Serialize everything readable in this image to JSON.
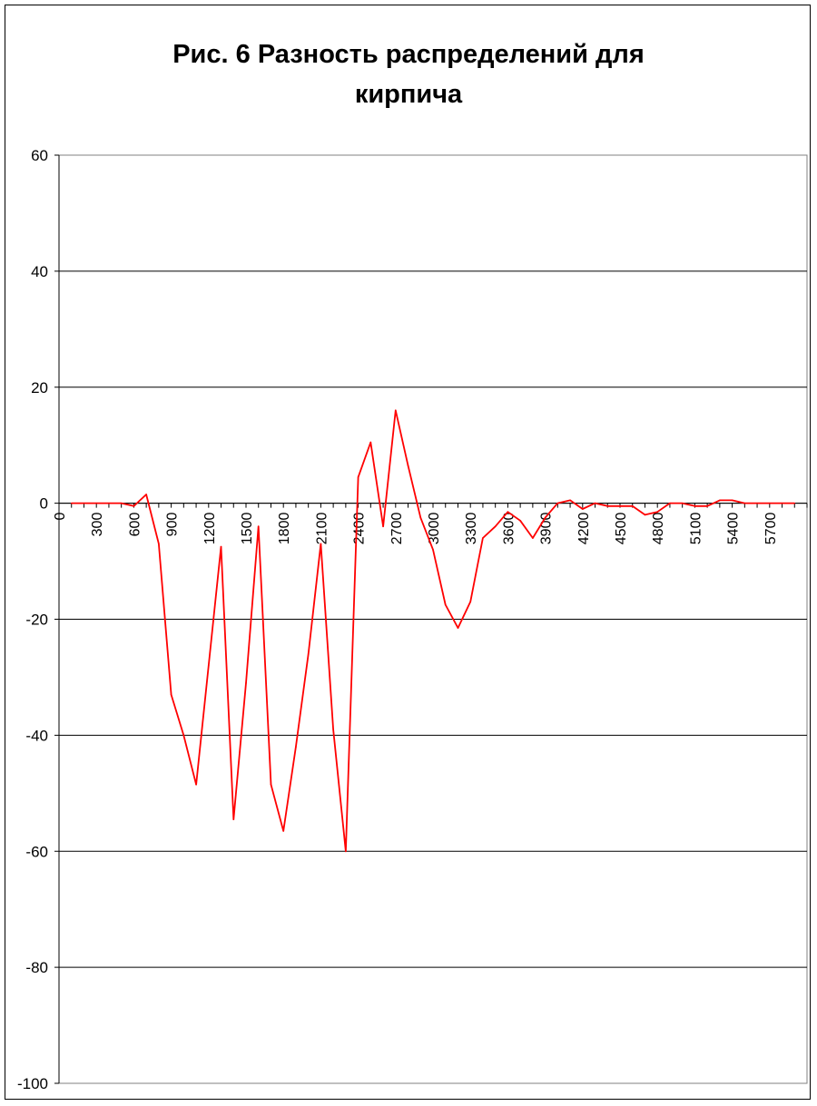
{
  "chart_data": {
    "type": "line",
    "title_lines": [
      "Рис. 6 Разность распределений для",
      "кирпича"
    ],
    "xlabel": "",
    "ylabel": "",
    "ylim": [
      -100,
      60
    ],
    "y_ticks": [
      60,
      40,
      20,
      0,
      -20,
      -40,
      -60,
      -80,
      -100
    ],
    "x_tick_labels": [
      "0",
      "300",
      "600",
      "900",
      "1200",
      "1500",
      "1800",
      "2100",
      "2400",
      "2700",
      "3000",
      "3300",
      "3600",
      "3900",
      "4200",
      "4500",
      "4800",
      "5100",
      "5400",
      "5700"
    ],
    "grid": "horizontal",
    "series": [
      {
        "color": "#ff0000",
        "x": [
          100,
          200,
          300,
          400,
          500,
          600,
          700,
          800,
          900,
          1000,
          1100,
          1200,
          1300,
          1400,
          1500,
          1600,
          1700,
          1800,
          1900,
          2000,
          2100,
          2200,
          2300,
          2400,
          2500,
          2600,
          2700,
          2800,
          2900,
          3000,
          3100,
          3200,
          3300,
          3400,
          3500,
          3600,
          3700,
          3800,
          3900,
          4000,
          4100,
          4200,
          4300,
          4400,
          4500,
          4600,
          4700,
          4800,
          4900,
          5000,
          5100,
          5200,
          5300,
          5400,
          5500,
          5600,
          5700,
          5800,
          5900
        ],
        "values": [
          0,
          0,
          0,
          0,
          0,
          -0.5,
          1.5,
          -7,
          -33,
          -40,
          -48.5,
          -28,
          -7.5,
          -54.5,
          -31,
          -4,
          -48.5,
          -56.5,
          -42,
          -26,
          -7,
          -39,
          -60,
          4.5,
          10.5,
          -4,
          16,
          6.5,
          -2.5,
          -8,
          -17.5,
          -21.5,
          -17,
          -6,
          -4,
          -1.5,
          -3,
          -6,
          -2.5,
          0,
          0.5,
          -1,
          0,
          -0.5,
          -0.5,
          -0.5,
          -2,
          -1.5,
          0,
          0,
          -0.5,
          -0.5,
          0.5,
          0.5,
          0,
          0,
          0,
          0,
          0
        ]
      }
    ]
  }
}
